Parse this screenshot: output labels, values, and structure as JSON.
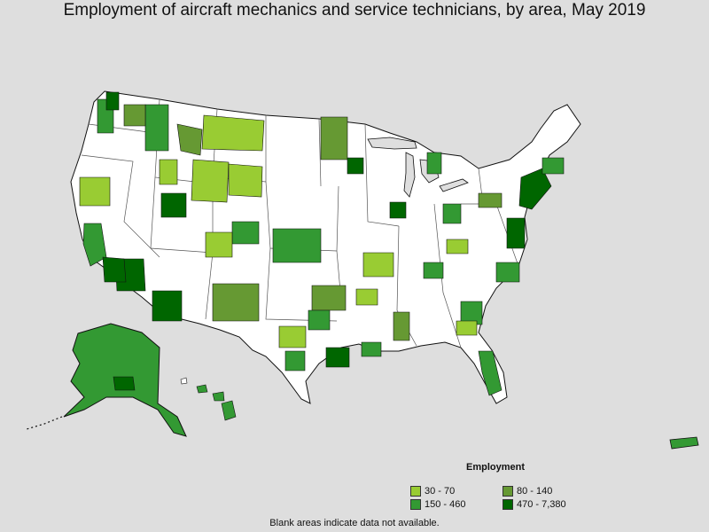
{
  "title": "Employment of aircraft mechanics and service technicians, by area, May 2019",
  "legend": {
    "title": "Employment",
    "items": [
      {
        "label": "30 - 70",
        "color": "#99cc33"
      },
      {
        "label": "80 - 140",
        "color": "#669933"
      },
      {
        "label": "150 - 460",
        "color": "#339933"
      },
      {
        "label": "470 - 7,380",
        "color": "#006600"
      }
    ]
  },
  "note": "Blank areas indicate data not available.",
  "colors": {
    "background": "#dedede",
    "land_blank": "#ffffff",
    "lakes": "#dedede",
    "border": "#111111"
  }
}
